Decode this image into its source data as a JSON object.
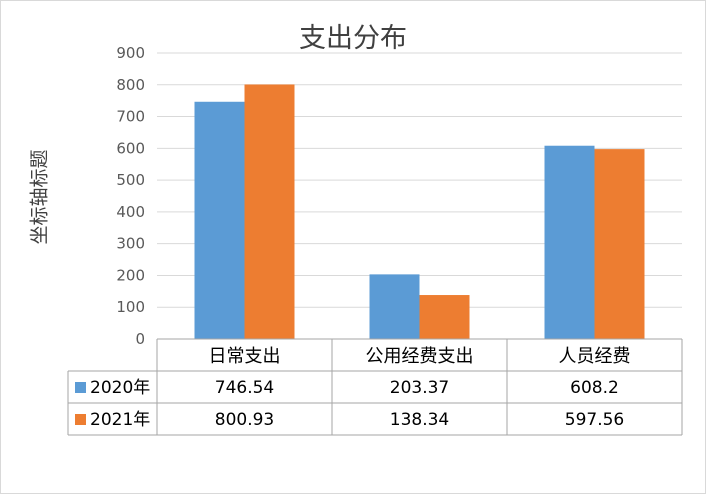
{
  "chart_data": {
    "type": "bar",
    "title": "支出分布",
    "xlabel": "",
    "ylabel": "坐标轴标题",
    "categories": [
      "日常支出",
      "公用经费支出",
      "人员经费"
    ],
    "series": [
      {
        "name": "2020年",
        "values": [
          746.54,
          203.37,
          608.2
        ],
        "color": "#5b9bd5"
      },
      {
        "name": "2021年",
        "values": [
          800.93,
          138.34,
          597.56
        ],
        "color": "#ed7d31"
      }
    ],
    "ylim": [
      0,
      900
    ],
    "yticks": [
      0,
      100,
      200,
      300,
      400,
      500,
      600,
      700,
      800,
      900
    ],
    "grid": true,
    "legend": "data-table"
  }
}
